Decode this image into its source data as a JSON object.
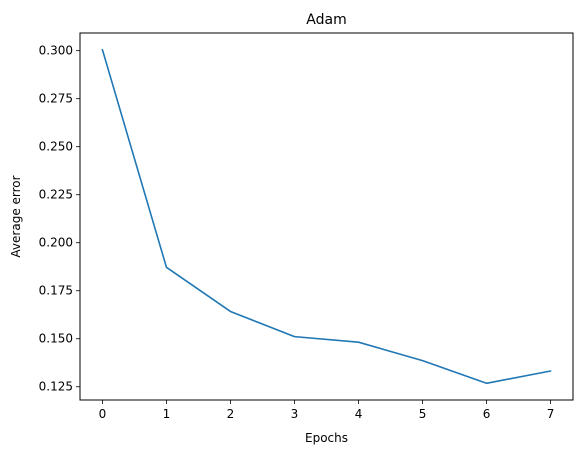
{
  "chart_data": {
    "type": "line",
    "title": "Adam",
    "xlabel": "Epochs",
    "ylabel": "Average error",
    "x": [
      0,
      1,
      2,
      3,
      4,
      5,
      6,
      7
    ],
    "series": [
      {
        "values": [
          0.3005,
          0.1872,
          0.1642,
          0.1511,
          0.1482,
          0.1386,
          0.1268,
          0.1332
        ],
        "color": "#1f77b4"
      }
    ],
    "xlim": [
      -0.35,
      7.35
    ],
    "ylim": [
      0.1181,
      0.3092
    ],
    "xticks": [
      0,
      1,
      2,
      3,
      4,
      5,
      6,
      7
    ],
    "xtick_labels": [
      "0",
      "1",
      "2",
      "3",
      "4",
      "5",
      "6",
      "7"
    ],
    "yticks": [
      0.125,
      0.15,
      0.175,
      0.2,
      0.225,
      0.25,
      0.275,
      0.3
    ],
    "ytick_labels": [
      "0.125",
      "0.150",
      "0.175",
      "0.200",
      "0.225",
      "0.250",
      "0.275",
      "0.300"
    ],
    "grid": false,
    "legend": "none"
  }
}
